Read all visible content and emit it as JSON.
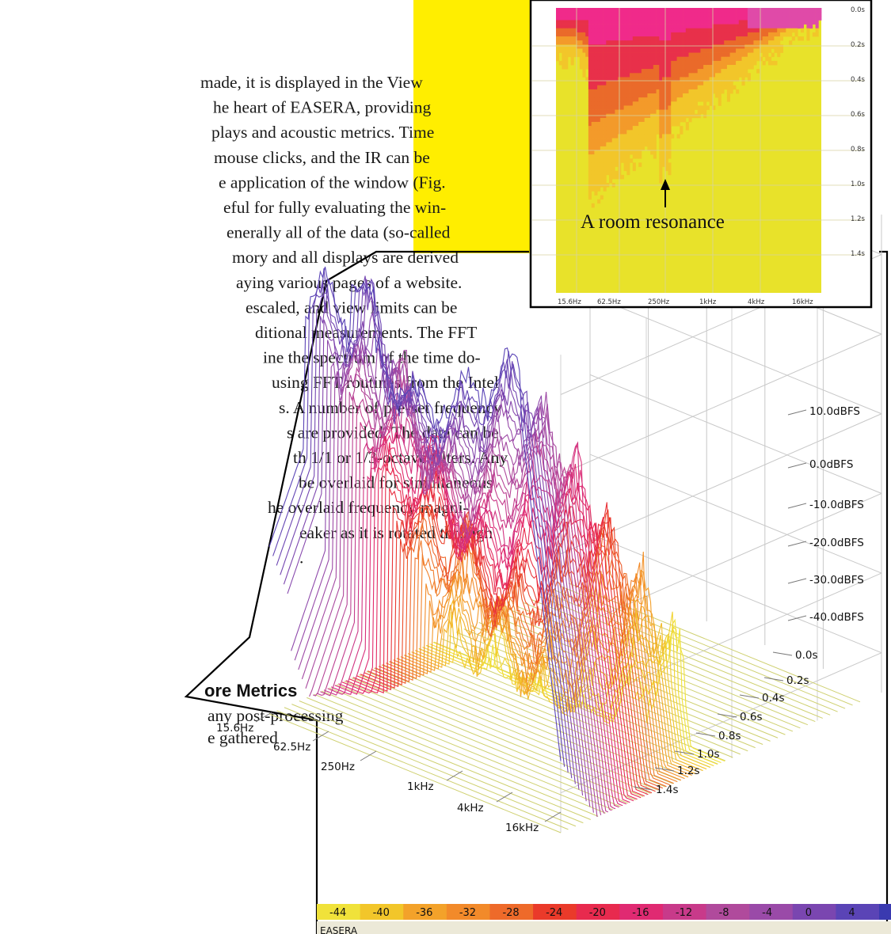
{
  "body_text": [
    "made, it is displayed in the View",
    "he heart of EASERA, providing",
    "plays and acoustic metrics. Time",
    "mouse clicks, and the IR can be",
    "e application of the window (Fig.",
    "eful for fully evaluating the win-",
    "enerally all of the data (so-called",
    "mory and all displays are derived",
    "aying various pages of a website.",
    "escaled, and view limits can be",
    "ditional measurements. The FFT",
    "ine the spectrum of the time do-",
    "using FFT routines from the Intel",
    "s. A number of pre-set frequency",
    "s are provided. The data can be",
    "th 1/1 or 1/3-octave filters. Any",
    " be overlaid for simultaneous",
    "he overlaid frequency magni-",
    "eaker as it is rotated through",
    "."
  ],
  "section_heading": "ore Metrics",
  "section_text": [
    "any post-processing",
    "e gathered"
  ],
  "colors": {
    "highlight": "#ffee00",
    "inset_bg": "#e8e22a",
    "status_bar": "#ece9d8",
    "frame": "#000000"
  },
  "chart_data": [
    {
      "type": "heatmap",
      "x_ticks": [
        "15.6Hz",
        "62.5Hz",
        "250Hz",
        "1kHz",
        "4kHz",
        "16kHz"
      ],
      "y_ticks": [
        "0.0s",
        "0.2s",
        "0.4s",
        "0.6s",
        "0.8s",
        "1.0s",
        "1.2s",
        "1.4s"
      ],
      "annotation": "A room resonance",
      "annotation_target": {
        "frequency": "250Hz",
        "time_s": 1.0
      }
    },
    {
      "type": "waterfall",
      "x_ticks": [
        "15.6Hz",
        "62.5Hz",
        "250Hz",
        "1kHz",
        "4kHz",
        "16kHz"
      ],
      "z_ticks": [
        "0.0s",
        "0.2s",
        "0.4s",
        "0.6s",
        "0.8s",
        "1.0s",
        "1.2s",
        "1.4s"
      ],
      "y_ticks": [
        "10.0dBFS",
        "0.0dBFS",
        "-10.0dBFS",
        "-20.0dBFS",
        "-30.0dBFS",
        "-40.0dBFS"
      ],
      "ylim": [
        -45,
        15
      ],
      "color_scale": {
        "values": [
          "-44",
          "-40",
          "-36",
          "-32",
          "-28",
          "-24",
          "-20",
          "-16",
          "-12",
          "-8",
          "-4",
          "0",
          "4"
        ],
        "colors": [
          "#f0e23a",
          "#f2c62a",
          "#f3a22a",
          "#f28a2a",
          "#ee6a2a",
          "#ea3a2a",
          "#e82a4e",
          "#e02a72",
          "#c83a8a",
          "#b04a9c",
          "#9a4aa8",
          "#7a46b0",
          "#5a44b6"
        ]
      }
    }
  ],
  "status_bar": {
    "app_name": "EASERA"
  }
}
